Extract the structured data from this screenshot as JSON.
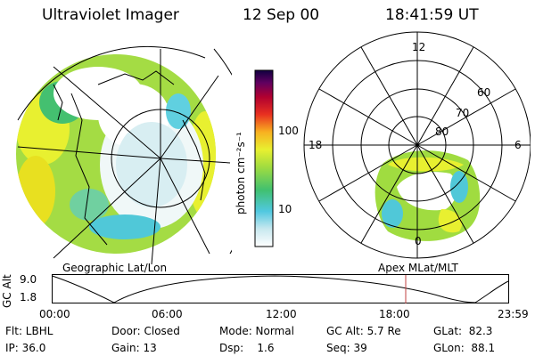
{
  "header": {
    "instrument": "Ultraviolet Imager",
    "date": "12 Sep 00",
    "time": "18:41:59 UT"
  },
  "left_panel": {
    "label": "Geographic Lat/Lon"
  },
  "right_panel": {
    "label": "Apex MLat/MLT",
    "mlt_labels": [
      "12",
      "18",
      "6",
      "0"
    ],
    "mlat_labels": [
      "60",
      "70",
      "80"
    ]
  },
  "colorbar": {
    "unit_label": "photon cm⁻²s⁻¹",
    "ticks": [
      "100",
      "10"
    ],
    "colors": [
      "#ffffff",
      "#c8e8ef",
      "#50c8e0",
      "#40c070",
      "#a0dc40",
      "#e8f030",
      "#f8b020",
      "#e83020",
      "#b00030",
      "#600060",
      "#100040"
    ]
  },
  "altitude_plot": {
    "ylabel": "GC Alt",
    "y_ticks": [
      "9.0",
      "1.8"
    ],
    "x_ticks": [
      "00:00",
      "06:00",
      "12:00",
      "18:00",
      "23:59"
    ],
    "current_time_marker": "18:42",
    "marker_color": "#c04040"
  },
  "status": {
    "row1": {
      "flt": "Flt: LBHL",
      "door": "Door: Closed",
      "mode": "Mode: Normal",
      "gc_alt": "GC Alt: 5.7 Re",
      "glat": "GLat:  82.3"
    },
    "row2": {
      "ip": "IP: 36.0",
      "gain": "Gain: 13",
      "dsp": "Dsp:    1.6",
      "seq": "Seq: 39",
      "glon": "GLon:  88.1"
    }
  }
}
